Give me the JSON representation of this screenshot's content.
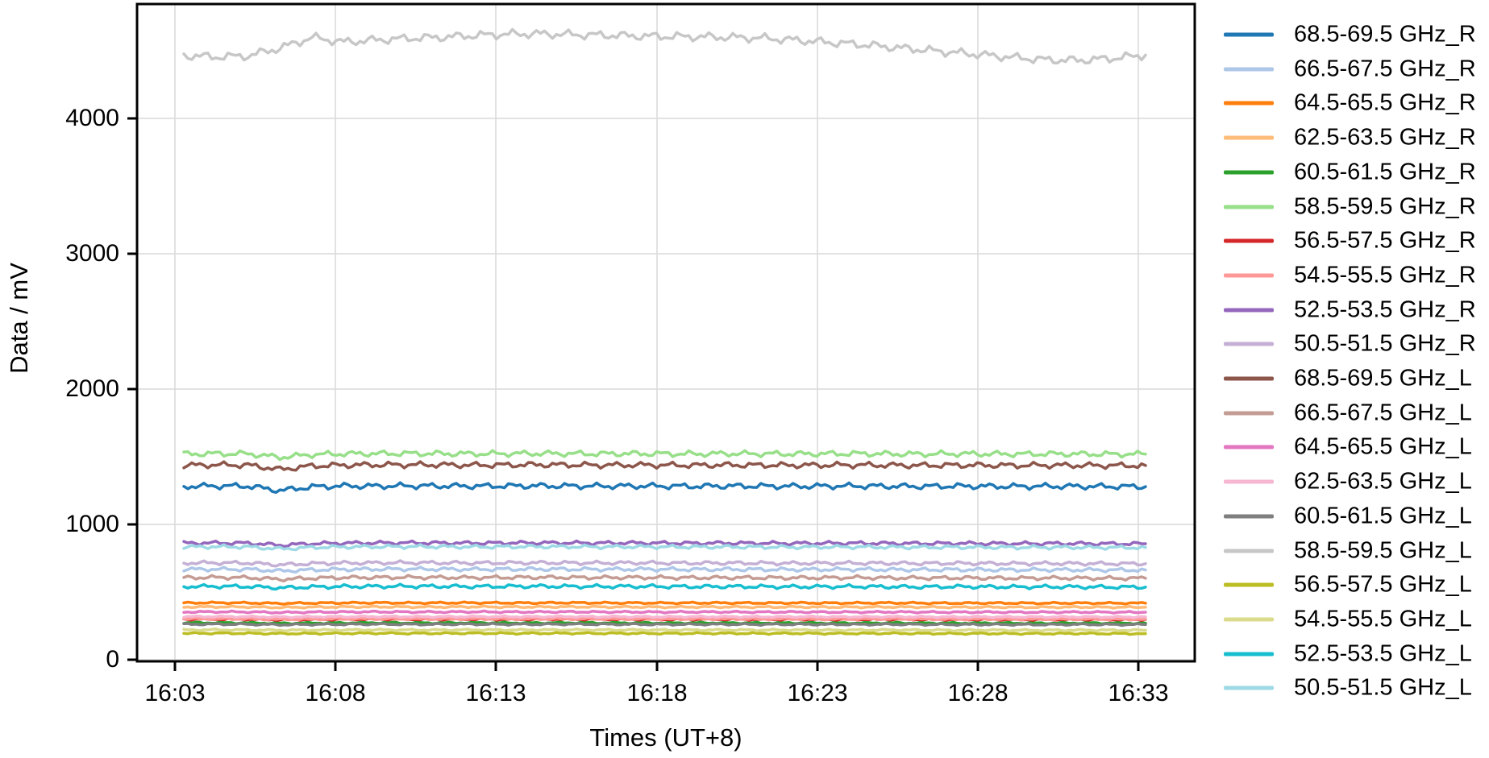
{
  "figure": {
    "background": "#ffffff",
    "axis_color": "#000000",
    "grid_color": "#d9d9d9"
  },
  "chart_data": {
    "type": "line",
    "title": "",
    "xlabel": "Times (UT+8)",
    "ylabel": "Data / mV",
    "grid": true,
    "legend_position": "right",
    "x_tick_labels": [
      "16:03",
      "16:08",
      "16:13",
      "16:18",
      "16:23",
      "16:28",
      "16:33"
    ],
    "y_tick_labels": [
      "0",
      "1000",
      "2000",
      "3000",
      "4000"
    ],
    "y_tick_values": [
      0,
      1000,
      2000,
      3000,
      4000
    ],
    "ylim": [
      -20,
      4850
    ],
    "xlim_minutes": [
      "16:01.8",
      "16:34.6"
    ],
    "x_minutes": [
      "16:03",
      "16:04",
      "16:05",
      "16:06",
      "16:07",
      "16:08",
      "16:09",
      "16:10",
      "16:11",
      "16:12",
      "16:13",
      "16:14",
      "16:15",
      "16:16",
      "16:17",
      "16:18",
      "16:19",
      "16:20",
      "16:21",
      "16:22",
      "16:23",
      "16:24",
      "16:25",
      "16:26",
      "16:27",
      "16:28",
      "16:29",
      "16:30",
      "16:31",
      "16:32",
      "16:33"
    ],
    "series": [
      {
        "name": "68.5-69.5 GHz_R",
        "color": "#1f77b4",
        "values": [
          1281,
          1284,
          1283,
          1250,
          1278,
          1284,
          1283,
          1285,
          1284,
          1283,
          1284,
          1285,
          1284,
          1283,
          1284,
          1283,
          1282,
          1284,
          1283,
          1282,
          1283,
          1284,
          1282,
          1281,
          1283,
          1282,
          1281,
          1282,
          1281,
          1280,
          1279
        ]
      },
      {
        "name": "66.5-67.5 GHz_R",
        "color": "#aec7e8",
        "values": [
          668,
          669,
          668,
          656,
          664,
          668,
          669,
          670,
          669,
          668,
          669,
          670,
          669,
          668,
          669,
          668,
          667,
          668,
          667,
          666,
          667,
          668,
          666,
          665,
          666,
          665,
          664,
          665,
          664,
          663,
          663
        ]
      },
      {
        "name": "64.5-65.5 GHz_R",
        "color": "#ff7f0e",
        "values": [
          420,
          421,
          420,
          416,
          419,
          420,
          421,
          420,
          420,
          421,
          420,
          420,
          421,
          420,
          420,
          419,
          420,
          420,
          419,
          420,
          419,
          419,
          420,
          419,
          418,
          419,
          418,
          418,
          419,
          418,
          418
        ]
      },
      {
        "name": "62.5-63.5 GHz_R",
        "color": "#ffbb78",
        "values": [
          390,
          391,
          390,
          386,
          389,
          390,
          391,
          390,
          390,
          391,
          390,
          390,
          391,
          390,
          390,
          389,
          390,
          390,
          389,
          390,
          389,
          389,
          390,
          389,
          388,
          389,
          388,
          388,
          389,
          388,
          388
        ]
      },
      {
        "name": "60.5-61.5 GHz_R",
        "color": "#2ca02c",
        "values": [
          272,
          273,
          272,
          269,
          271,
          272,
          273,
          272,
          272,
          273,
          272,
          272,
          273,
          272,
          272,
          271,
          272,
          272,
          271,
          272,
          271,
          271,
          272,
          271,
          270,
          271,
          270,
          270,
          271,
          270,
          270
        ]
      },
      {
        "name": "58.5-59.5 GHz_R",
        "color": "#98df8a",
        "values": [
          1520,
          1523,
          1522,
          1496,
          1516,
          1522,
          1523,
          1524,
          1523,
          1522,
          1523,
          1524,
          1523,
          1522,
          1523,
          1522,
          1521,
          1523,
          1522,
          1521,
          1522,
          1523,
          1521,
          1520,
          1522,
          1521,
          1520,
          1521,
          1520,
          1519,
          1519
        ]
      },
      {
        "name": "56.5-57.5 GHz_R",
        "color": "#d62728",
        "values": [
          299,
          300,
          299,
          296,
          298,
          299,
          300,
          299,
          299,
          300,
          299,
          299,
          300,
          299,
          299,
          298,
          299,
          299,
          298,
          299,
          298,
          298,
          299,
          298,
          297,
          298,
          297,
          297,
          298,
          297,
          297
        ]
      },
      {
        "name": "54.5-55.5 GHz_R",
        "color": "#ff9896",
        "values": [
          301,
          302,
          301,
          298,
          300,
          301,
          302,
          301,
          301,
          302,
          301,
          301,
          302,
          301,
          301,
          300,
          301,
          301,
          300,
          301,
          300,
          300,
          301,
          300,
          299,
          300,
          299,
          299,
          300,
          299,
          299
        ]
      },
      {
        "name": "52.5-53.5 GHz_R",
        "color": "#9467bd",
        "values": [
          862,
          863,
          862,
          846,
          858,
          862,
          863,
          864,
          863,
          862,
          863,
          864,
          863,
          862,
          863,
          862,
          861,
          862,
          861,
          860,
          861,
          861,
          860,
          859,
          860,
          859,
          858,
          859,
          858,
          857,
          857
        ]
      },
      {
        "name": "50.5-51.5 GHz_R",
        "color": "#c5b0d5",
        "values": [
          715,
          716,
          715,
          701,
          711,
          715,
          716,
          717,
          716,
          715,
          716,
          717,
          716,
          715,
          716,
          715,
          714,
          715,
          714,
          713,
          714,
          714,
          713,
          712,
          713,
          712,
          711,
          712,
          711,
          710,
          710
        ]
      },
      {
        "name": "68.5-69.5 GHz_L",
        "color": "#8c564b",
        "values": [
          1436,
          1440,
          1438,
          1406,
          1432,
          1438,
          1440,
          1441,
          1440,
          1438,
          1439,
          1441,
          1440,
          1438,
          1439,
          1438,
          1437,
          1439,
          1438,
          1437,
          1438,
          1439,
          1437,
          1436,
          1438,
          1437,
          1436,
          1437,
          1436,
          1435,
          1435
        ]
      },
      {
        "name": "66.5-67.5 GHz_L",
        "color": "#c49c94",
        "values": [
          607,
          608,
          607,
          594,
          603,
          607,
          608,
          609,
          608,
          607,
          608,
          609,
          608,
          607,
          608,
          607,
          606,
          607,
          606,
          605,
          606,
          607,
          605,
          604,
          605,
          604,
          603,
          604,
          603,
          602,
          602
        ]
      },
      {
        "name": "64.5-65.5 GHz_L",
        "color": "#e377c2",
        "values": [
          353,
          354,
          353,
          349,
          352,
          353,
          354,
          353,
          353,
          354,
          353,
          353,
          354,
          353,
          353,
          352,
          353,
          353,
          352,
          353,
          352,
          352,
          353,
          352,
          351,
          352,
          351,
          351,
          352,
          351,
          351
        ]
      },
      {
        "name": "62.5-63.5 GHz_L",
        "color": "#f7b6d2",
        "values": [
          318,
          319,
          318,
          315,
          317,
          318,
          319,
          318,
          318,
          319,
          318,
          318,
          319,
          318,
          318,
          317,
          318,
          318,
          317,
          318,
          317,
          317,
          318,
          317,
          316,
          317,
          316,
          316,
          317,
          316,
          316
        ]
      },
      {
        "name": "60.5-61.5 GHz_L",
        "color": "#7f7f7f",
        "values": [
          262,
          263,
          262,
          259,
          261,
          262,
          263,
          262,
          262,
          263,
          262,
          262,
          263,
          262,
          262,
          261,
          262,
          262,
          261,
          262,
          261,
          261,
          262,
          261,
          260,
          261,
          260,
          260,
          261,
          260,
          260
        ]
      },
      {
        "name": "58.5-59.5 GHz_L",
        "color": "#c7c7c7",
        "values": [
          4465,
          4455,
          4462,
          4520,
          4598,
          4565,
          4580,
          4592,
          4600,
          4612,
          4622,
          4626,
          4620,
          4616,
          4610,
          4606,
          4604,
          4600,
          4594,
          4580,
          4564,
          4548,
          4528,
          4508,
          4488,
          4468,
          4448,
          4432,
          4430,
          4445,
          4468
        ]
      },
      {
        "name": "56.5-57.5 GHz_L",
        "color": "#bcbd22",
        "values": [
          195,
          196,
          195,
          193,
          194,
          195,
          196,
          195,
          195,
          196,
          195,
          195,
          196,
          195,
          195,
          194,
          195,
          195,
          194,
          195,
          194,
          194,
          195,
          194,
          193,
          194,
          193,
          193,
          194,
          193,
          193
        ]
      },
      {
        "name": "54.5-55.5 GHz_L",
        "color": "#dbdb8d",
        "values": [
          220,
          221,
          220,
          218,
          219,
          220,
          221,
          220,
          220,
          221,
          220,
          220,
          221,
          220,
          220,
          219,
          220,
          220,
          219,
          220,
          219,
          219,
          220,
          219,
          218,
          219,
          218,
          218,
          219,
          218,
          218
        ]
      },
      {
        "name": "52.5-53.5 GHz_L",
        "color": "#17becf",
        "values": [
          541,
          542,
          541,
          531,
          538,
          541,
          542,
          543,
          542,
          541,
          542,
          543,
          542,
          541,
          542,
          541,
          540,
          541,
          540,
          539,
          540,
          541,
          539,
          538,
          540,
          539,
          538,
          539,
          538,
          537,
          537
        ]
      },
      {
        "name": "50.5-51.5 GHz_L",
        "color": "#9edae5",
        "values": [
          834,
          835,
          834,
          819,
          830,
          834,
          835,
          836,
          835,
          834,
          835,
          836,
          835,
          834,
          835,
          834,
          833,
          834,
          833,
          832,
          833,
          833,
          832,
          831,
          832,
          831,
          830,
          831,
          830,
          829,
          829
        ]
      }
    ]
  }
}
